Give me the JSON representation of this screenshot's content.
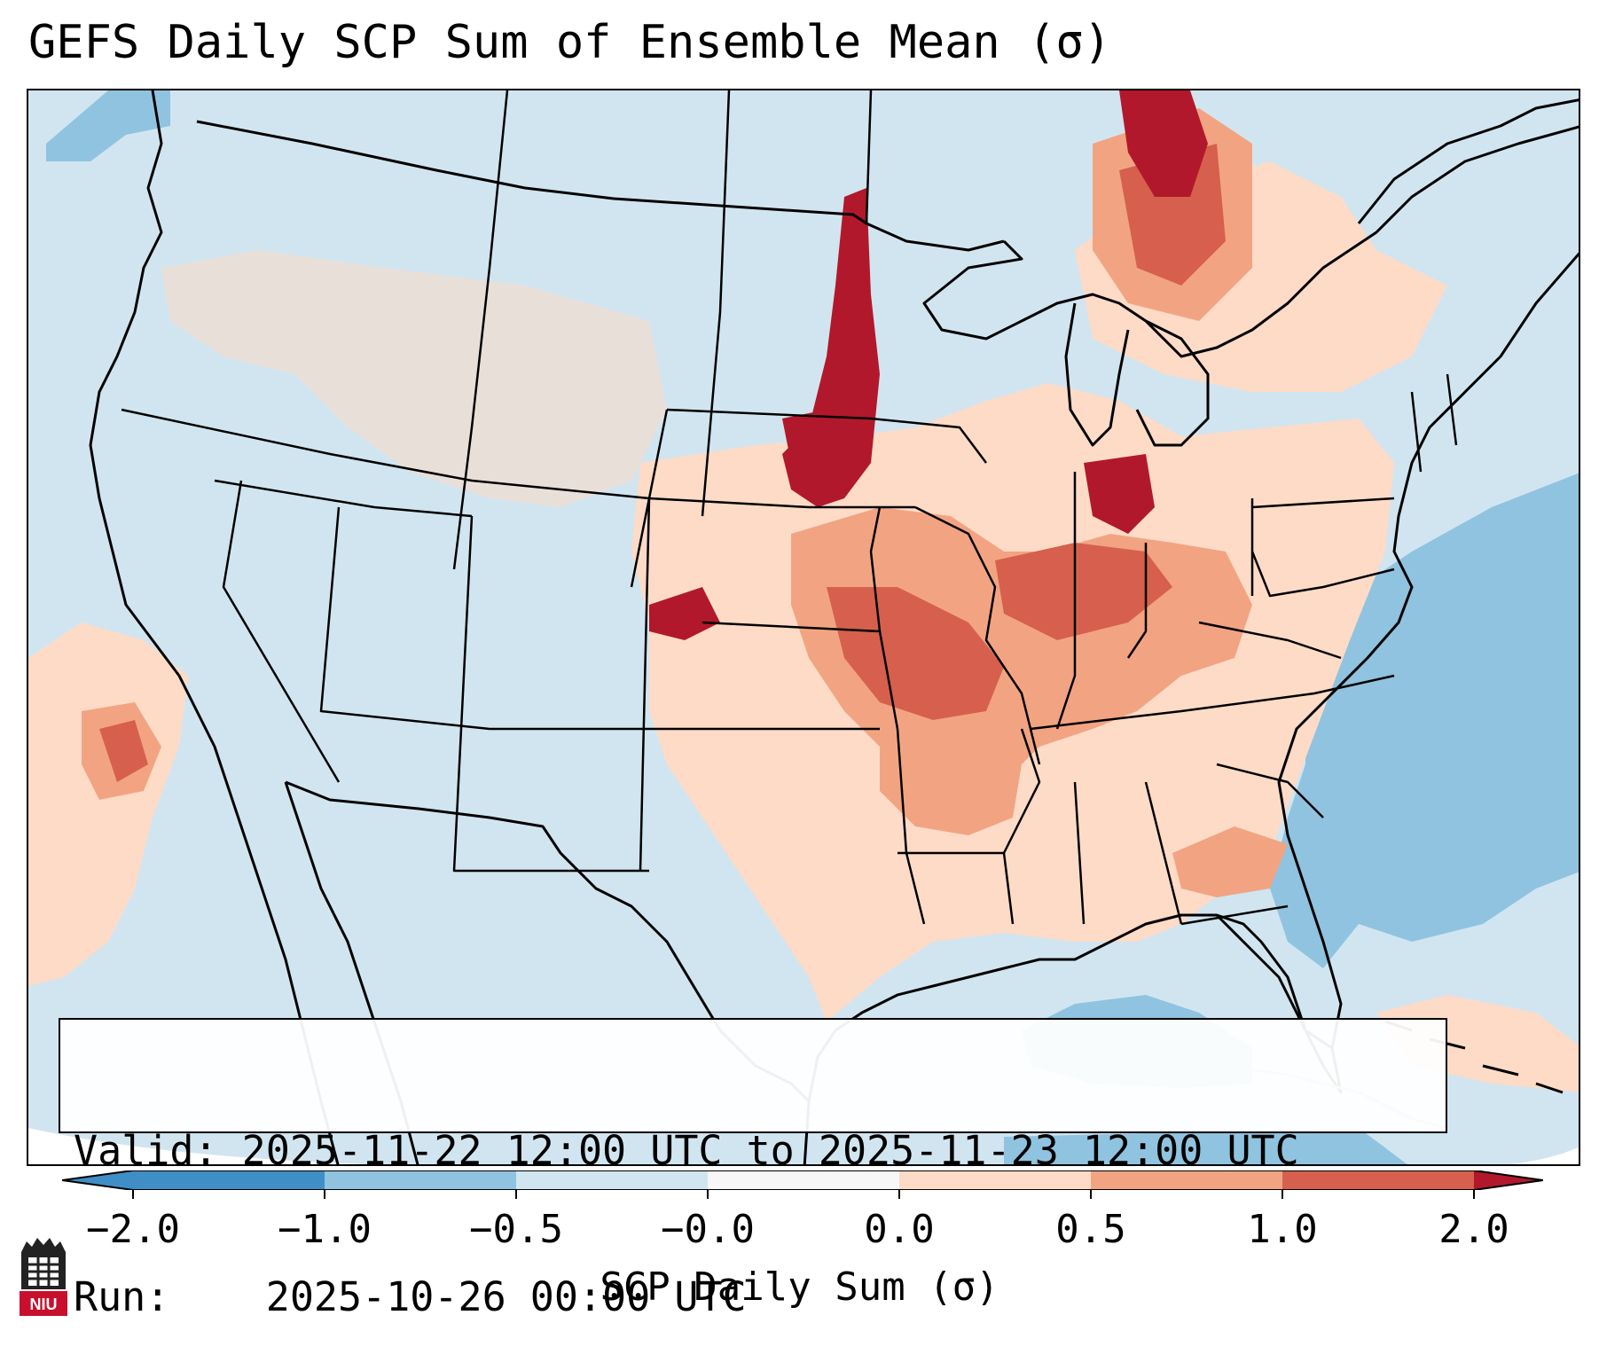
{
  "title": "GEFS Daily SCP Sum of Ensemble Mean (σ)",
  "info": {
    "valid_label": "Valid:",
    "valid_value": "2025-11-22 12:00 UTC to 2025-11-23 12:00 UTC",
    "run_label": "Run:",
    "run_value": "2025-10-26 00:00 UTC"
  },
  "colorbar": {
    "title": "SCP Daily Sum (σ)",
    "ticks": [
      "−2.0",
      "−1.0",
      "−0.5",
      "−0.0",
      "0.0",
      "0.5",
      "1.0",
      "2.0"
    ],
    "colors": [
      "#3f8ec5",
      "#90c3df",
      "#d1e5f0",
      "#f7f7f7",
      "#fddbc7",
      "#f2a482",
      "#d6604d",
      "#b2182b"
    ]
  },
  "map": {
    "background_color": "#d1e5f0",
    "ocean_negative_color": "#90c3df",
    "positive_low_color": "#fddbc7",
    "positive_mid_color": "#f2a482",
    "positive_high_color": "#d6604d",
    "positive_max_color": "#b2182b"
  },
  "logo": {
    "text": "NIU"
  }
}
